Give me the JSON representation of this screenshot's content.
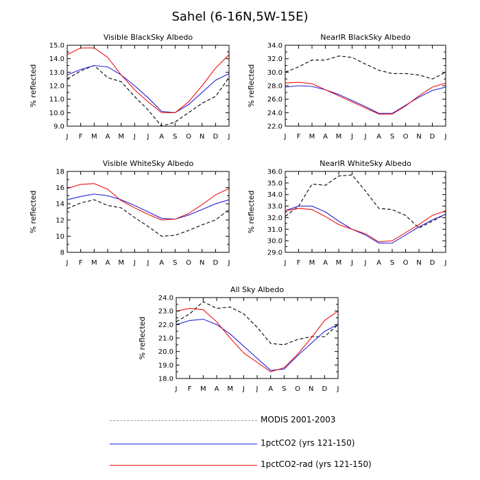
{
  "page_title": "Sahel (6-16N,5W-15E)",
  "legend": [
    {
      "label": "MODIS 2001-2003",
      "color": "#000000",
      "dash": true
    },
    {
      "label": "1pctCO2 (yrs 121-150)",
      "color": "#2222dd",
      "dash": false
    },
    {
      "label": "1pctCO2-rad (yrs 121-150)",
      "color": "#ee1111",
      "dash": false
    }
  ],
  "chart_data": [
    {
      "type": "line",
      "title": "Visible BlackSky Albedo",
      "ylabel": "% reflected",
      "categories": [
        "J",
        "F",
        "M",
        "A",
        "M",
        "J",
        "J",
        "A",
        "S",
        "O",
        "N",
        "D",
        "J"
      ],
      "ylim": [
        9.0,
        15.0
      ],
      "yticks": [
        "9.0",
        "10.0",
        "11.0",
        "12.0",
        "13.0",
        "14.0",
        "15.0"
      ],
      "series": [
        {
          "name": "MODIS 2001-2003",
          "color": "#000000",
          "dash": true,
          "values": [
            12.5,
            13.1,
            13.5,
            12.6,
            12.3,
            11.2,
            10.2,
            9.0,
            9.3,
            10.0,
            10.7,
            11.2,
            12.6
          ]
        },
        {
          "name": "1pctCO2 (yrs 121-150)",
          "color": "#2222dd",
          "dash": false,
          "values": [
            12.8,
            13.2,
            13.5,
            13.4,
            12.8,
            12.0,
            11.1,
            10.1,
            10.0,
            10.6,
            11.5,
            12.4,
            12.9
          ]
        },
        {
          "name": "1pctCO2-rad (yrs 121-150)",
          "color": "#ee1111",
          "dash": false,
          "values": [
            14.3,
            14.8,
            14.8,
            14.1,
            12.8,
            11.7,
            10.8,
            10.0,
            10.0,
            10.8,
            12.0,
            13.3,
            14.3
          ]
        }
      ]
    },
    {
      "type": "line",
      "title": "NearIR BlackSky Albedo",
      "ylabel": "% reflected",
      "categories": [
        "J",
        "F",
        "M",
        "A",
        "M",
        "J",
        "J",
        "A",
        "S",
        "O",
        "N",
        "D",
        "J"
      ],
      "ylim": [
        22.0,
        34.0
      ],
      "yticks": [
        "22.0",
        "24.0",
        "26.0",
        "28.0",
        "30.0",
        "32.0",
        "34.0"
      ],
      "series": [
        {
          "name": "MODIS 2001-2003",
          "color": "#000000",
          "dash": true,
          "values": [
            30.0,
            30.8,
            31.8,
            31.8,
            32.4,
            32.2,
            31.2,
            30.3,
            29.8,
            29.8,
            29.6,
            29.0,
            30.0
          ]
        },
        {
          "name": "1pctCO2 (yrs 121-150)",
          "color": "#2222dd",
          "dash": false,
          "values": [
            27.8,
            28.0,
            27.9,
            27.4,
            26.7,
            25.8,
            24.9,
            23.9,
            23.9,
            25.1,
            26.3,
            27.3,
            27.8
          ]
        },
        {
          "name": "1pctCO2-rad (yrs 121-150)",
          "color": "#ee1111",
          "dash": false,
          "values": [
            28.4,
            28.5,
            28.3,
            27.4,
            26.5,
            25.6,
            24.7,
            23.8,
            23.8,
            25.0,
            26.5,
            27.8,
            28.4
          ]
        }
      ]
    },
    {
      "type": "line",
      "title": "Visible WhiteSky Albedo",
      "ylabel": "% reflected",
      "categories": [
        "J",
        "F",
        "M",
        "A",
        "M",
        "J",
        "J",
        "A",
        "S",
        "O",
        "N",
        "D",
        "J"
      ],
      "ylim": [
        8,
        18
      ],
      "yticks": [
        "8",
        "10",
        "12",
        "14",
        "16",
        "18"
      ],
      "series": [
        {
          "name": "MODIS 2001-2003",
          "color": "#000000",
          "dash": true,
          "values": [
            13.4,
            14.1,
            14.5,
            13.8,
            13.5,
            12.3,
            11.2,
            10.0,
            10.1,
            10.7,
            11.4,
            12.0,
            13.3
          ]
        },
        {
          "name": "1pctCO2 (yrs 121-150)",
          "color": "#2222dd",
          "dash": false,
          "values": [
            14.5,
            14.9,
            15.2,
            15.0,
            14.5,
            13.8,
            13.0,
            12.2,
            12.1,
            12.6,
            13.3,
            14.0,
            14.5
          ]
        },
        {
          "name": "1pctCO2-rad (yrs 121-150)",
          "color": "#ee1111",
          "dash": false,
          "values": [
            15.9,
            16.4,
            16.5,
            15.8,
            14.4,
            13.5,
            12.7,
            12.0,
            12.1,
            12.8,
            13.9,
            15.1,
            15.9
          ]
        }
      ]
    },
    {
      "type": "line",
      "title": "NearIR WhiteSky Albedo",
      "ylabel": "% reflected",
      "categories": [
        "J",
        "F",
        "M",
        "A",
        "M",
        "J",
        "J",
        "A",
        "S",
        "O",
        "N",
        "D",
        "J"
      ],
      "ylim": [
        29.0,
        36.0
      ],
      "yticks": [
        "29.0",
        "30.0",
        "31.0",
        "32.0",
        "33.0",
        "34.0",
        "35.0",
        "36.0"
      ],
      "series": [
        {
          "name": "MODIS 2001-2003",
          "color": "#000000",
          "dash": true,
          "values": [
            32.1,
            33.0,
            34.9,
            34.8,
            35.6,
            35.7,
            34.3,
            32.8,
            32.7,
            32.2,
            31.1,
            31.7,
            32.3
          ]
        },
        {
          "name": "1pctCO2 (yrs 121-150)",
          "color": "#2222dd",
          "dash": false,
          "values": [
            32.6,
            33.0,
            33.0,
            32.5,
            31.7,
            31.0,
            30.5,
            29.8,
            29.8,
            30.5,
            31.2,
            31.8,
            32.3
          ]
        },
        {
          "name": "1pctCO2-rad (yrs 121-150)",
          "color": "#ee1111",
          "dash": false,
          "values": [
            32.6,
            32.8,
            32.7,
            32.1,
            31.4,
            31.0,
            30.6,
            29.9,
            30.0,
            30.7,
            31.4,
            32.2,
            32.6
          ]
        }
      ]
    },
    {
      "type": "line",
      "title": "All Sky Albedo",
      "ylabel": "% reflected",
      "categories": [
        "J",
        "F",
        "M",
        "A",
        "M",
        "J",
        "J",
        "A",
        "S",
        "O",
        "N",
        "D",
        "J"
      ],
      "ylim": [
        18.0,
        24.0
      ],
      "yticks": [
        "18.0",
        "19.0",
        "20.0",
        "21.0",
        "22.0",
        "23.0",
        "24.0"
      ],
      "series": [
        {
          "name": "MODIS 2001-2003",
          "color": "#000000",
          "dash": true,
          "values": [
            22.2,
            22.8,
            23.7,
            23.2,
            23.3,
            22.8,
            21.8,
            20.6,
            20.5,
            20.9,
            21.1,
            21.1,
            22.0
          ]
        },
        {
          "name": "1pctCO2 (yrs 121-150)",
          "color": "#2222dd",
          "dash": false,
          "values": [
            22.0,
            22.3,
            22.4,
            22.0,
            21.3,
            20.4,
            19.5,
            18.6,
            18.7,
            19.7,
            20.6,
            21.5,
            22.0
          ]
        },
        {
          "name": "1pctCO2-rad (yrs 121-150)",
          "color": "#ee1111",
          "dash": false,
          "values": [
            23.0,
            23.2,
            23.1,
            22.2,
            21.0,
            19.9,
            19.2,
            18.5,
            18.8,
            19.8,
            21.0,
            22.3,
            23.0
          ]
        }
      ]
    }
  ]
}
